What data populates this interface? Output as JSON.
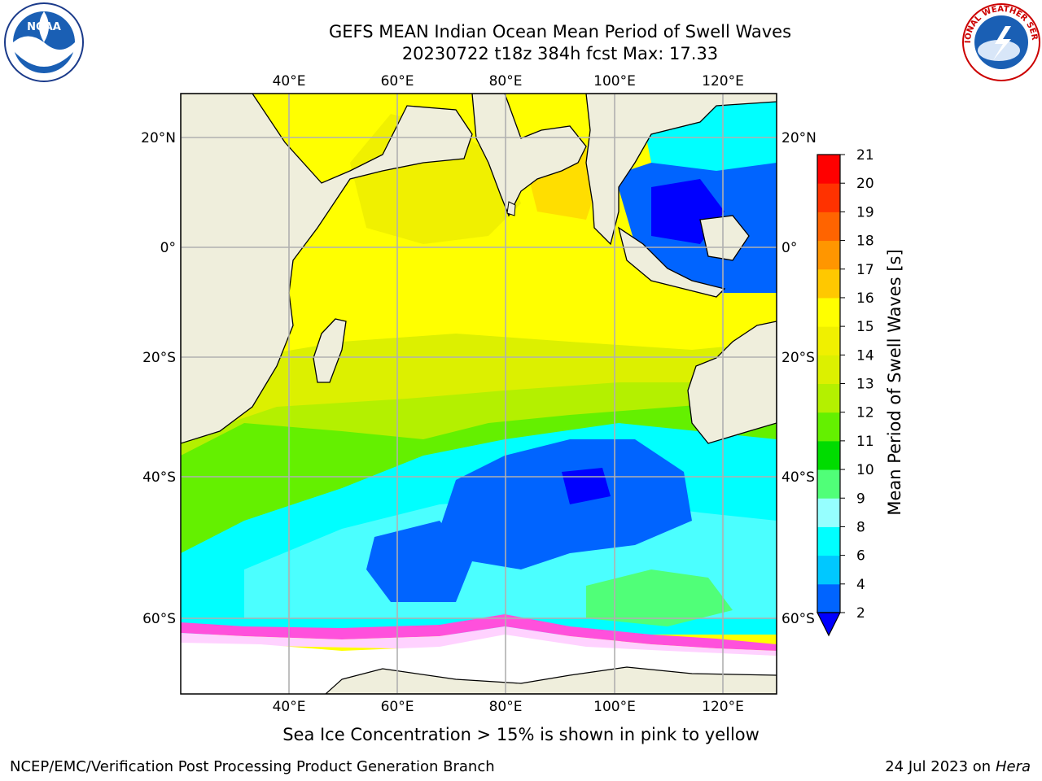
{
  "header": {
    "title_line1": "GEFS MEAN Indian Ocean Mean Period of Swell Waves",
    "title_line2": "20230722 t18z 384h fcst   Max: 17.33"
  },
  "map": {
    "lon_ticks": [
      "40°E",
      "60°E",
      "80°E",
      "100°E",
      "120°E"
    ],
    "lat_ticks": [
      "20°N",
      "0°",
      "20°S",
      "40°S",
      "60°S"
    ],
    "land_color": "#efeedc",
    "grid_color": "#b0b0b0"
  },
  "colorbar": {
    "label": "Mean Period of Swell Waves [s]",
    "ticks": [
      "2",
      "4",
      "6",
      "8",
      "9",
      "10",
      "11",
      "12",
      "13",
      "14",
      "15",
      "16",
      "17",
      "18",
      "19",
      "20",
      "21"
    ],
    "colors": [
      "#0064ff",
      "#00c8ff",
      "#00ffff",
      "#96ffff",
      "#50ff78",
      "#00dc00",
      "#64f000",
      "#b4f000",
      "#dcf000",
      "#f0f000",
      "#ffff00",
      "#ffc800",
      "#ff9600",
      "#ff6400",
      "#ff3200",
      "#ff0000"
    ],
    "extend_color": "#0000ff"
  },
  "note": "Sea Ice Concentration > 15% is shown in pink to yellow",
  "footer": {
    "left": "NCEP/EMC/Verification Post Processing Product Generation Branch",
    "right_date": "24 Jul 2023 on ",
    "right_host": "Hera"
  },
  "logos": {
    "noaa_text": "NOAA",
    "nws_text": "NATIONAL WEATHER SERVICE"
  }
}
